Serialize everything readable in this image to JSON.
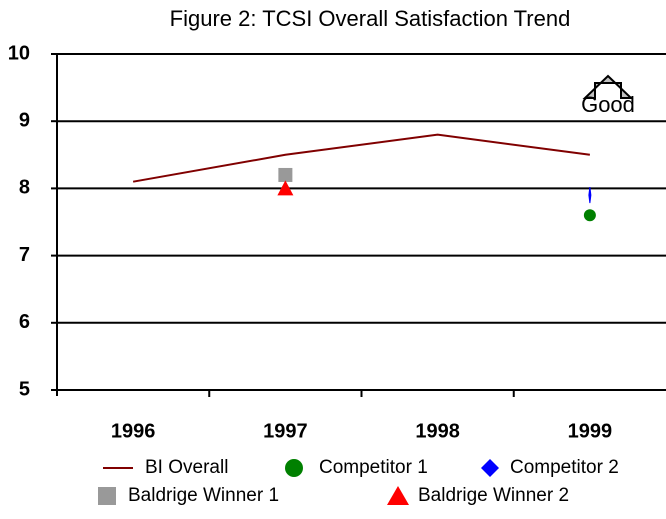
{
  "chart_data": {
    "type": "line",
    "title": "Figure 2: TCSI Overall Satisfaction Trend",
    "categories": [
      "1996",
      "1997",
      "1998",
      "1999"
    ],
    "series": [
      {
        "name": "BI Overall",
        "color": "#800000",
        "marker": "line",
        "values": [
          8.1,
          8.5,
          8.8,
          8.5
        ]
      },
      {
        "name": "Competitor 1",
        "color": "#008000",
        "marker": "circle",
        "values": [
          null,
          null,
          null,
          7.6
        ]
      },
      {
        "name": "Competitor 2",
        "color": "#0000ff",
        "marker": "diamond",
        "values": [
          null,
          null,
          null,
          7.9
        ]
      },
      {
        "name": "Baldrige Winner 1",
        "color": "#999999",
        "marker": "square",
        "values": [
          null,
          8.2,
          null,
          null
        ]
      },
      {
        "name": "Baldrige Winner 2",
        "color": "#ff0000",
        "marker": "triangle",
        "values": [
          null,
          8.0,
          null,
          null
        ]
      }
    ],
    "ylim": [
      5,
      10
    ],
    "yticks": [
      5,
      6,
      7,
      8,
      9,
      10
    ],
    "grid": true,
    "annotation": "Good"
  }
}
